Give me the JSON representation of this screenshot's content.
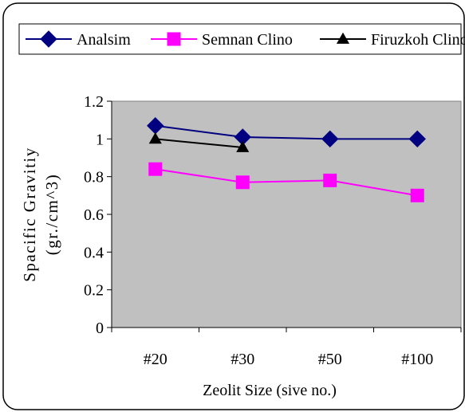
{
  "chart_data": {
    "type": "line",
    "categories": [
      "#20",
      "#30",
      "#50",
      "#100"
    ],
    "series": [
      {
        "name": "Analsim",
        "values": [
          1.07,
          1.01,
          1.0,
          1.0
        ],
        "color": "#000080",
        "marker": "diamond"
      },
      {
        "name": "Semnan Clino",
        "values": [
          0.84,
          0.77,
          0.78,
          0.7
        ],
        "color": "#ff00ff",
        "marker": "square"
      },
      {
        "name": "Firuzkoh Clino",
        "values": [
          1.0,
          0.955,
          null,
          null
        ],
        "color": "#000000",
        "marker": "triangle"
      }
    ],
    "ylabel_line1": "Spacific Gravitiy",
    "ylabel_line2": "(gr./cm^3)",
    "xlabel": "Zeolit Size (sive no.)",
    "ylim": [
      0,
      1.2
    ],
    "yticks": [
      "0",
      "0.2",
      "0.4",
      "0.6",
      "0.8",
      "1",
      "1.2"
    ],
    "ytick_values": [
      0,
      0.2,
      0.4,
      0.6,
      0.8,
      1.0,
      1.2
    ],
    "grid": false,
    "legend_position": "top",
    "plot_background": "#c0c0c0"
  }
}
